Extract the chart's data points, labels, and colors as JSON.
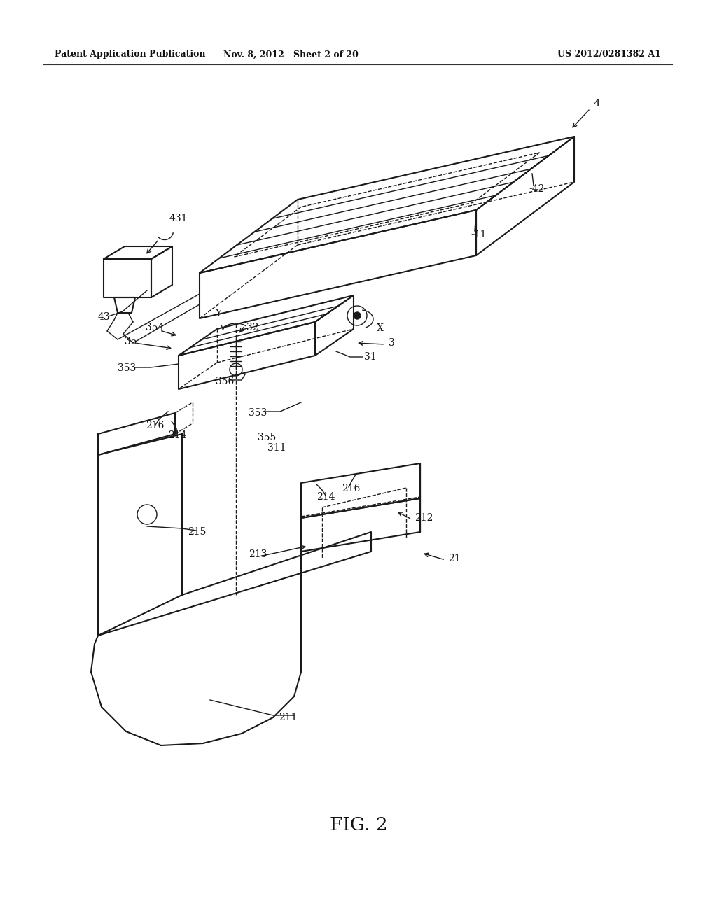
{
  "bg_color": "#ffffff",
  "header_left": "Patent Application Publication",
  "header_mid": "Nov. 8, 2012   Sheet 2 of 20",
  "header_right": "US 2012/0281382 A1",
  "figure_label": "FIG. 2",
  "lc": "#1a1a1a",
  "lw": 1.5,
  "lt": 1.0
}
